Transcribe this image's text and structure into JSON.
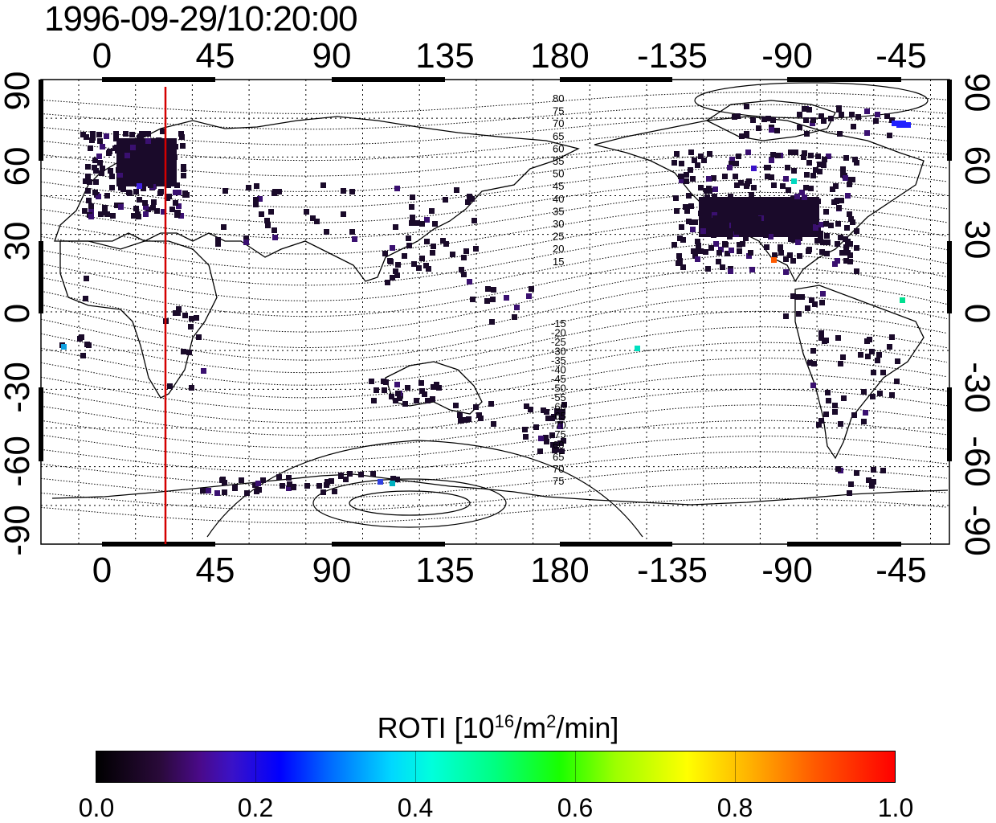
{
  "title": "1996-09-29/10:20:00",
  "x_axis": {
    "top_ticks": [
      "0",
      "45",
      "90",
      "135",
      "180",
      "-135",
      "-90",
      "-45"
    ],
    "bottom_ticks": [
      "0",
      "45",
      "90",
      "135",
      "180",
      "-135",
      "-90",
      "-45"
    ]
  },
  "y_axis": {
    "left_ticks": [
      "90",
      "60",
      "30",
      "0",
      "-30",
      "-60",
      "-90"
    ],
    "right_ticks": [
      "90",
      "60",
      "30",
      "0",
      "-30",
      "-60",
      "-90"
    ]
  },
  "contour_labels": {
    "north": [
      "80",
      "75",
      "70",
      "65",
      "60",
      "55",
      "50",
      "45",
      "40",
      "35",
      "30",
      "25",
      "20",
      "15"
    ],
    "south": [
      "-15",
      "-20",
      "-25",
      "-30",
      "-35",
      "-40",
      "-45",
      "-50",
      "-55",
      "-60",
      "-65",
      "-70",
      "-75"
    ],
    "south_pole": [
      "60",
      "65",
      "70",
      "75"
    ]
  },
  "colorbar": {
    "label": "ROTI  [10",
    "label_sup1": "16",
    "label_mid": "/m",
    "label_sup2": "2",
    "label_end": "/min]",
    "min": 0.0,
    "max": 1.0,
    "ticks": [
      "0.0",
      "0.2",
      "0.4",
      "0.6",
      "0.8",
      "1.0"
    ]
  },
  "colors": {
    "terminator": "#d40000",
    "frame": "#000000",
    "low_value": "#1a0a2a",
    "mid_value": "#3a1070"
  },
  "map": {
    "projection": "equirectangular",
    "lon_range": [
      "-22",
      "338"
    ],
    "lat_range": [
      -90,
      90
    ],
    "terminator_longitude": 28
  }
}
